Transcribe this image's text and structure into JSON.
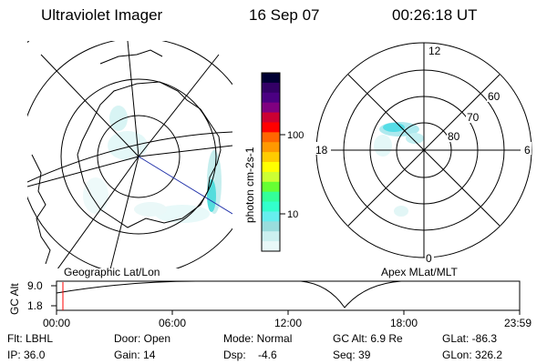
{
  "header": {
    "instrument": "Ultraviolet Imager",
    "date": "16 Sep 07",
    "time": "00:26:18 UT"
  },
  "geo_panel": {
    "caption": "Geographic Lat/Lon"
  },
  "mag_panel": {
    "caption": "Apex MLat/MLT",
    "mlt_labels": {
      "top": "12",
      "right": "6",
      "bottom": "0",
      "left": "18"
    },
    "lat_labels": [
      "60",
      "70",
      "80"
    ]
  },
  "colorbar": {
    "label": "photon cm-2s-1",
    "ticks": [
      "100",
      "10"
    ],
    "colors": [
      "#000033",
      "#330066",
      "#4b0082",
      "#800080",
      "#cc0033",
      "#ff0000",
      "#ff6600",
      "#ff9900",
      "#ffcc00",
      "#ffff00",
      "#ccff33",
      "#66ff33",
      "#33ff99",
      "#33ffcc",
      "#66eeee",
      "#99dddd",
      "#ccf0f0",
      "#e8f8f8"
    ]
  },
  "altitude_plot": {
    "ylabel": "GC Alt",
    "y_ticks": [
      "9.0",
      "1.8"
    ],
    "x_ticks": [
      "00:00",
      "06:00",
      "12:00",
      "18:00",
      "23:59"
    ],
    "current_marker_time": "00:26"
  },
  "footer": {
    "row1": [
      {
        "text": "Flt: LBHL"
      },
      {
        "text": "Door: Open"
      },
      {
        "text": "Mode: Normal"
      },
      {
        "text": "GC Alt: 6.9 Re"
      },
      {
        "text": "GLat: -86.3"
      }
    ],
    "row2": [
      {
        "text": "IP: 36.0"
      },
      {
        "text": "Gain: 14"
      },
      {
        "text": "Dsp:    -4.6"
      },
      {
        "text": "Seq: 39"
      },
      {
        "text": "GLon: 326.2"
      }
    ]
  }
}
